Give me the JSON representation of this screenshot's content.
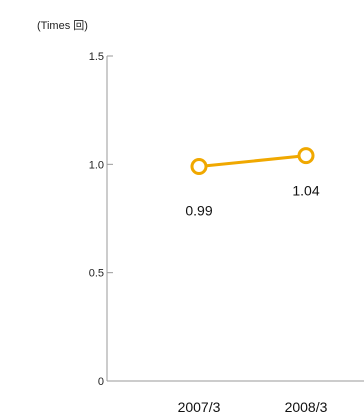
{
  "chart_data": {
    "type": "line",
    "title": "",
    "ylabel": "(Times 回)",
    "xlabel": "",
    "categories": [
      "2007/3",
      "2008/3"
    ],
    "series": [
      {
        "values": [
          0.99,
          1.04
        ],
        "color": "#f0a800"
      }
    ],
    "data_labels": [
      "0.99",
      "1.04"
    ],
    "y_ticks": [
      {
        "value": 0,
        "label": "0"
      },
      {
        "value": 0.5,
        "label": "0.5"
      },
      {
        "value": 1.0,
        "label": "1.0"
      },
      {
        "value": 1.5,
        "label": "1.5"
      }
    ],
    "ylim": [
      0,
      1.5
    ],
    "grid": false,
    "legend": "none"
  }
}
